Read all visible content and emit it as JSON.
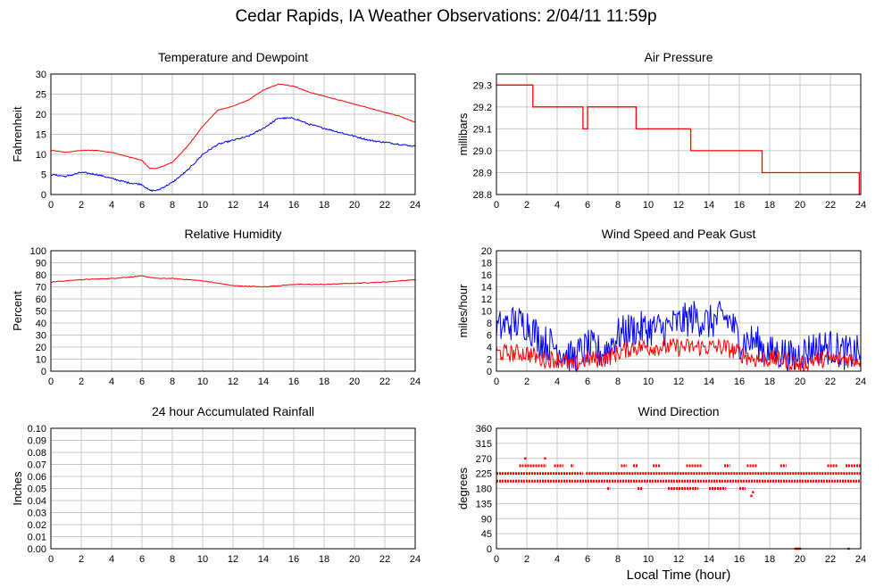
{
  "page": {
    "title": "Cedar Rapids, IA Weather Observations: 2/04/11 11:59p",
    "xlabel": "Local Time (hour)"
  },
  "colors": {
    "series_red": "#ff0000",
    "series_blue": "#0000ff",
    "grid": "#c8c8c8",
    "frame": "#000000"
  },
  "chart_data": [
    {
      "id": "temp",
      "type": "line",
      "title": "Temperature and Dewpoint",
      "xlabel": "",
      "ylabel": "Fahrenheit",
      "xlim": [
        0,
        24
      ],
      "ylim": [
        0,
        30
      ],
      "xticks": [
        0,
        2,
        4,
        6,
        8,
        10,
        12,
        14,
        16,
        18,
        20,
        22,
        24
      ],
      "yticks": [
        0,
        5,
        10,
        15,
        20,
        25,
        30
      ],
      "ytick_decimals": 0,
      "grid": true,
      "series": [
        {
          "color": "#ff0000",
          "noise": 0.15,
          "x": [
            0,
            1,
            2,
            3,
            4,
            5,
            6,
            6.5,
            7,
            8,
            9,
            10,
            11,
            12,
            13,
            14,
            15,
            16,
            17,
            18,
            19,
            20,
            21,
            22,
            23,
            24
          ],
          "y": [
            11,
            10.5,
            11,
            11,
            10.5,
            9.5,
            8.5,
            6.5,
            6.5,
            8,
            12,
            17,
            21,
            22,
            23.5,
            26,
            27.5,
            27,
            25.5,
            24.5,
            23.5,
            22.5,
            21.5,
            20.5,
            19.5,
            18
          ]
        },
        {
          "color": "#0000ff",
          "noise": 0.4,
          "x": [
            0,
            1,
            2,
            3,
            4,
            5,
            6,
            6.5,
            7,
            8,
            9,
            10,
            11,
            12,
            13,
            14,
            15,
            16,
            17,
            18,
            19,
            20,
            21,
            22,
            23,
            24
          ],
          "y": [
            5,
            4.5,
            5.5,
            5,
            4,
            3,
            2.5,
            1,
            1,
            3,
            6,
            10,
            12.5,
            13.5,
            14.5,
            16.5,
            19,
            19,
            17.5,
            16.5,
            15.5,
            14.5,
            13.5,
            13,
            12.5,
            12
          ]
        }
      ]
    },
    {
      "id": "pressure",
      "type": "line",
      "title": "Air Pressure",
      "xlabel": "",
      "ylabel": "millibars",
      "xlim": [
        0,
        24
      ],
      "ylim": [
        28.8,
        29.35
      ],
      "xticks": [
        0,
        2,
        4,
        6,
        8,
        10,
        12,
        14,
        16,
        18,
        20,
        22,
        24
      ],
      "yticks": [
        28.8,
        28.9,
        29.0,
        29.1,
        29.2,
        29.3
      ],
      "ytick_decimals": 1,
      "grid": true,
      "series": [
        {
          "color": "#ff0000",
          "noise": 0,
          "x": [
            0,
            2.4,
            2.4,
            5.7,
            5.7,
            6.0,
            6.0,
            9.2,
            9.2,
            12.8,
            12.8,
            17.5,
            17.5,
            23.9,
            23.9,
            24
          ],
          "y": [
            29.3,
            29.3,
            29.2,
            29.2,
            29.1,
            29.1,
            29.2,
            29.2,
            29.1,
            29.1,
            29.0,
            29.0,
            28.9,
            28.9,
            28.8,
            28.8
          ]
        }
      ]
    },
    {
      "id": "humidity",
      "type": "line",
      "title": "Relative Humidity",
      "xlabel": "",
      "ylabel": "Percent",
      "xlim": [
        0,
        24
      ],
      "ylim": [
        0,
        100
      ],
      "xticks": [
        0,
        2,
        4,
        6,
        8,
        10,
        12,
        14,
        16,
        18,
        20,
        22,
        24
      ],
      "yticks": [
        0,
        10,
        20,
        30,
        40,
        50,
        60,
        70,
        80,
        90,
        100
      ],
      "ytick_decimals": 0,
      "grid": true,
      "series": [
        {
          "color": "#ff0000",
          "noise": 0.6,
          "x": [
            0,
            2,
            4,
            6,
            7,
            8,
            10,
            12,
            14,
            15,
            16,
            18,
            20,
            22,
            24
          ],
          "y": [
            74,
            76,
            77,
            79,
            77,
            77,
            75,
            71,
            70,
            71,
            72,
            72,
            73,
            74,
            76
          ]
        }
      ]
    },
    {
      "id": "wind",
      "type": "line",
      "title": "Wind Speed and Peak Gust",
      "xlabel": "",
      "ylabel": "miles/hour",
      "xlim": [
        0,
        24
      ],
      "ylim": [
        0,
        20
      ],
      "xticks": [
        0,
        2,
        4,
        6,
        8,
        10,
        12,
        14,
        16,
        18,
        20,
        22,
        24
      ],
      "yticks": [
        0,
        2,
        4,
        6,
        8,
        10,
        12,
        14,
        16,
        18,
        20
      ],
      "ytick_decimals": 0,
      "grid": true,
      "series": [
        {
          "color": "#0000ff",
          "noise": 3.0,
          "x": [
            0,
            1,
            2,
            3,
            4,
            5,
            6,
            7,
            8,
            9,
            10,
            11,
            12,
            13,
            14,
            15,
            15.5,
            16,
            17,
            18,
            19,
            19.5,
            20,
            21,
            22,
            23,
            24
          ],
          "y": [
            7,
            8,
            8,
            5,
            4,
            2,
            4,
            3,
            6,
            7,
            7,
            7,
            8,
            9,
            8,
            9,
            8,
            5,
            5,
            3,
            3,
            2,
            3,
            4,
            4,
            3,
            3
          ]
        },
        {
          "color": "#ff0000",
          "noise": 1.5,
          "x": [
            0,
            1,
            2,
            3,
            4,
            5,
            6,
            7,
            8,
            9,
            10,
            11,
            12,
            13,
            14,
            15,
            16,
            17,
            18,
            19,
            20,
            21,
            22,
            23,
            24
          ],
          "y": [
            3,
            3,
            3,
            2,
            2,
            1,
            2,
            2,
            3,
            4,
            4,
            4,
            4,
            4,
            4,
            4,
            3,
            2,
            2,
            2,
            1,
            2,
            2,
            2,
            2
          ]
        }
      ]
    },
    {
      "id": "rain",
      "type": "line",
      "title": "24 hour Accumulated Rainfall",
      "xlabel": "",
      "ylabel": "Inches",
      "xlim": [
        0,
        24
      ],
      "ylim": [
        0,
        0.1
      ],
      "xticks": [
        0,
        2,
        4,
        6,
        8,
        10,
        12,
        14,
        16,
        18,
        20,
        22,
        24
      ],
      "yticks": [
        0,
        0.01,
        0.02,
        0.03,
        0.04,
        0.05,
        0.06,
        0.07,
        0.08,
        0.09,
        0.1
      ],
      "ytick_decimals": 2,
      "grid": true,
      "series": [
        {
          "color": "#ff0000",
          "noise": 0,
          "x": [
            0,
            24
          ],
          "y": [
            0,
            0
          ]
        }
      ]
    },
    {
      "id": "direction",
      "type": "scatter",
      "title": "Wind Direction",
      "xlabel": "Local Time (hour)",
      "ylabel": "degrees",
      "xlim": [
        0,
        24
      ],
      "ylim": [
        0,
        360
      ],
      "xticks": [
        0,
        2,
        4,
        6,
        8,
        10,
        12,
        14,
        16,
        18,
        20,
        22,
        24
      ],
      "yticks": [
        0,
        45,
        90,
        135,
        180,
        225,
        270,
        315,
        360
      ],
      "ytick_decimals": 0,
      "grid": true,
      "series": [
        {
          "color": "#ff0000",
          "bands": [
            {
              "y": 225,
              "ranges": [
                [
                  0,
                  5.7
                ],
                [
                  5.9,
                  24
                ]
              ]
            },
            {
              "y": 202,
              "ranges": [
                [
                  0,
                  24
                ]
              ]
            },
            {
              "y": 248,
              "ranges": [
                [
                  1.5,
                  3.3
                ],
                [
                  3.8,
                  4.4
                ],
                [
                  4.9,
                  5.1
                ],
                [
                  8.2,
                  8.6
                ],
                [
                  9.0,
                  9.3
                ],
                [
                  10.3,
                  10.8
                ],
                [
                  12.5,
                  13.5
                ],
                [
                  15.0,
                  15.4
                ],
                [
                  16.5,
                  17.2
                ],
                [
                  18.7,
                  19.1
                ],
                [
                  21.8,
                  22.5
                ],
                [
                  23.0,
                  24
                ]
              ]
            },
            {
              "y": 180,
              "ranges": [
                [
                  7.3,
                  7.5
                ],
                [
                  9.3,
                  9.6
                ],
                [
                  11.3,
                  13.3
                ],
                [
                  14.0,
                  15.1
                ],
                [
                  16.0,
                  16.4
                ]
              ]
            }
          ],
          "extra_points": [
            [
              1.9,
              270
            ],
            [
              3.2,
              270
            ],
            [
              16.8,
              158
            ],
            [
              16.9,
              169
            ],
            [
              19.7,
              0
            ],
            [
              19.8,
              0
            ],
            [
              19.9,
              0
            ],
            [
              20.0,
              0
            ],
            [
              23.2,
              0
            ]
          ]
        }
      ]
    }
  ]
}
